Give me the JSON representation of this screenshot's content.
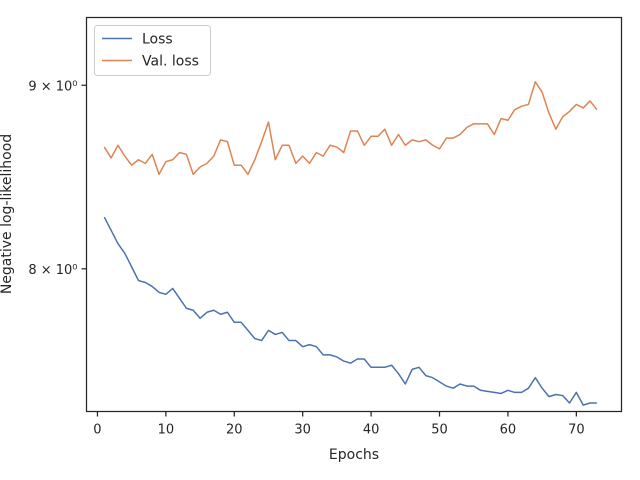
{
  "chart_data": {
    "type": "line",
    "xlabel": "Epochs",
    "ylabel": "Negative log-likelihood",
    "y_scale": "log",
    "xlim": [
      -1.6,
      76.6
    ],
    "ylim": [
      7.3,
      9.4
    ],
    "x_ticks": [
      0,
      10,
      20,
      30,
      40,
      50,
      60,
      70
    ],
    "y_ticks": [
      {
        "value": 8,
        "label": "8 × 10⁰"
      },
      {
        "value": 9,
        "label": "9 × 10⁰"
      }
    ],
    "grid": false,
    "legend_position": "top-left",
    "x": [
      1,
      2,
      3,
      4,
      5,
      6,
      7,
      8,
      9,
      10,
      11,
      12,
      13,
      14,
      15,
      16,
      17,
      18,
      19,
      20,
      21,
      22,
      23,
      24,
      25,
      26,
      27,
      28,
      29,
      30,
      31,
      32,
      33,
      34,
      35,
      36,
      37,
      38,
      39,
      40,
      41,
      42,
      43,
      44,
      45,
      46,
      47,
      48,
      49,
      50,
      51,
      52,
      53,
      54,
      55,
      56,
      57,
      58,
      59,
      60,
      61,
      62,
      63,
      64,
      65,
      66,
      67,
      68,
      69,
      70,
      71,
      72,
      73
    ],
    "series": [
      {
        "name": "Loss",
        "color": "#4c72b0",
        "values": [
          8.27,
          8.2,
          8.13,
          8.08,
          8.01,
          7.94,
          7.93,
          7.91,
          7.88,
          7.87,
          7.9,
          7.85,
          7.8,
          7.79,
          7.75,
          7.78,
          7.79,
          7.77,
          7.78,
          7.73,
          7.73,
          7.69,
          7.65,
          7.64,
          7.69,
          7.67,
          7.68,
          7.64,
          7.64,
          7.61,
          7.62,
          7.61,
          7.57,
          7.57,
          7.56,
          7.54,
          7.53,
          7.55,
          7.55,
          7.51,
          7.51,
          7.51,
          7.52,
          7.48,
          7.43,
          7.5,
          7.51,
          7.47,
          7.46,
          7.44,
          7.42,
          7.41,
          7.43,
          7.42,
          7.42,
          7.4,
          7.395,
          7.39,
          7.385,
          7.4,
          7.39,
          7.39,
          7.41,
          7.46,
          7.41,
          7.37,
          7.38,
          7.375,
          7.34,
          7.39,
          7.33,
          7.34,
          7.34
        ]
      },
      {
        "name": "Val. loss",
        "color": "#dd8452",
        "values": [
          8.65,
          8.59,
          8.66,
          8.6,
          8.55,
          8.58,
          8.56,
          8.61,
          8.5,
          8.57,
          8.58,
          8.62,
          8.61,
          8.5,
          8.54,
          8.56,
          8.6,
          8.69,
          8.68,
          8.55,
          8.55,
          8.5,
          8.58,
          8.68,
          8.79,
          8.58,
          8.66,
          8.66,
          8.56,
          8.6,
          8.56,
          8.62,
          8.6,
          8.66,
          8.65,
          8.62,
          8.74,
          8.74,
          8.66,
          8.71,
          8.71,
          8.75,
          8.66,
          8.72,
          8.66,
          8.69,
          8.68,
          8.69,
          8.66,
          8.64,
          8.7,
          8.7,
          8.72,
          8.76,
          8.78,
          8.78,
          8.78,
          8.72,
          8.81,
          8.8,
          8.86,
          8.88,
          8.89,
          9.02,
          8.96,
          8.84,
          8.75,
          8.82,
          8.85,
          8.89,
          8.87,
          8.91,
          8.86
        ]
      }
    ]
  }
}
